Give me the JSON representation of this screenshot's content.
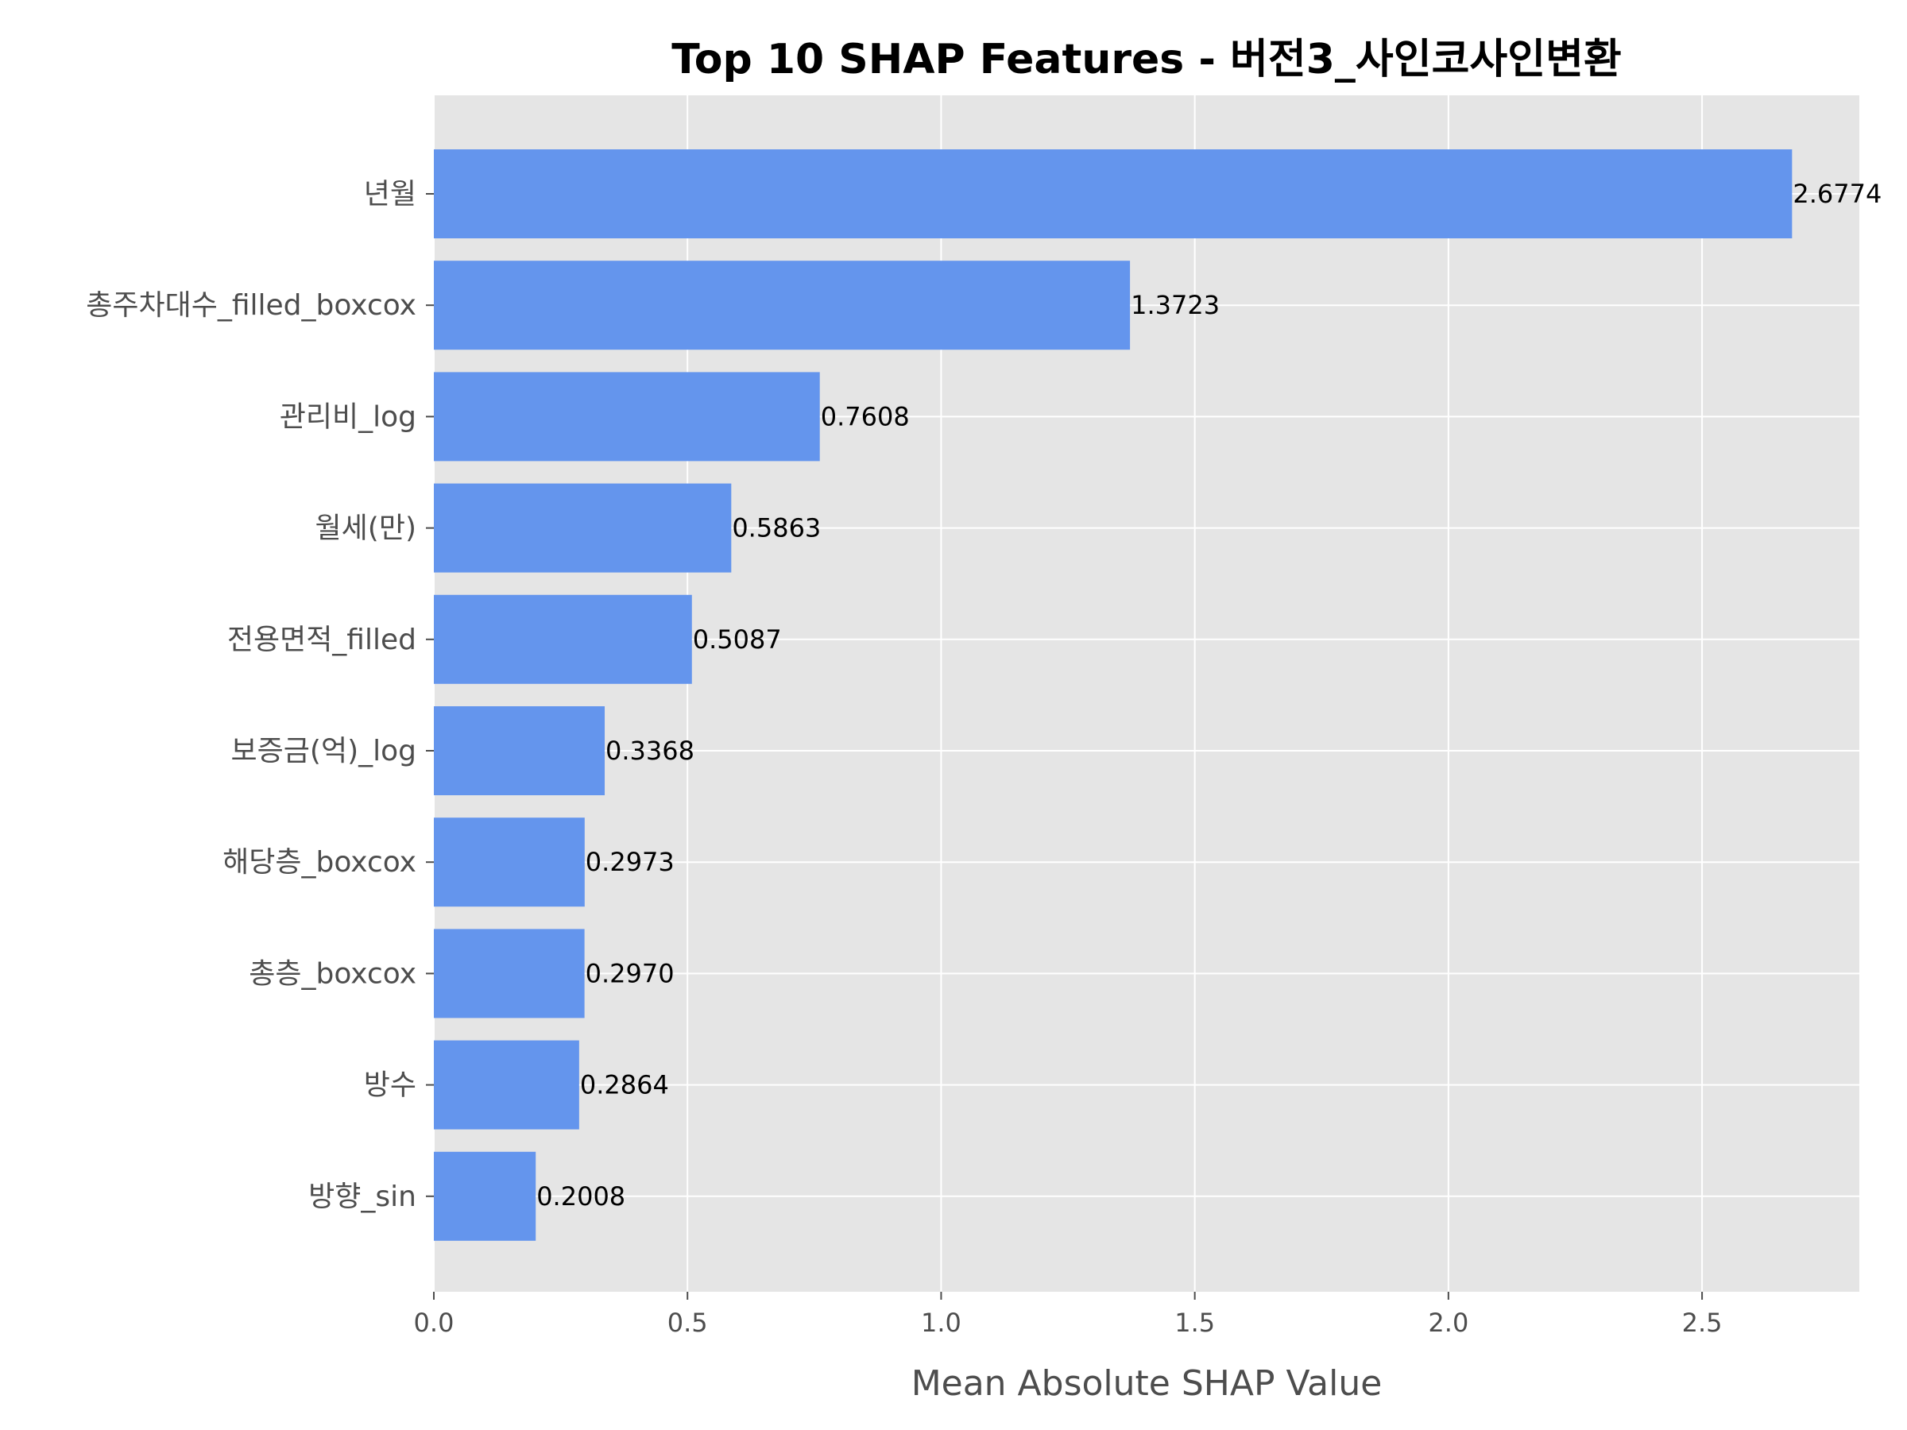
{
  "chart_data": {
    "type": "bar",
    "orientation": "horizontal",
    "title": "Top 10 SHAP Features - 버전3_사인코사인변환",
    "xlabel": "Mean Absolute SHAP Value",
    "ylabel": "",
    "xlim": [
      0,
      2.81
    ],
    "xticks": [
      0.0,
      0.5,
      1.0,
      1.5,
      2.0,
      2.5
    ],
    "xtick_labels": [
      "0.0",
      "0.5",
      "1.0",
      "1.5",
      "2.0",
      "2.5"
    ],
    "grid": true,
    "categories": [
      "년월",
      "총주차대수_filled_boxcox",
      "관리비_log",
      "월세(만)",
      "전용면적_filled",
      "보증금(억)_log",
      "해당층_boxcox",
      "총층_boxcox",
      "방수",
      "방향_sin"
    ],
    "values": [
      2.6774,
      1.3723,
      0.7608,
      0.5863,
      0.5087,
      0.3368,
      0.2973,
      0.297,
      0.2864,
      0.2008
    ],
    "value_labels": [
      "2.6774",
      "1.3723",
      "0.7608",
      "0.5863",
      "0.5087",
      "0.3368",
      "0.2973",
      "0.2970",
      "0.2864",
      "0.2008"
    ]
  },
  "colors": {
    "bar": "#6495ED",
    "plot_background": "#E5E5E5",
    "grid": "#FFFFFF",
    "tick_text": "#4D4D4D",
    "title_text": "#000000"
  }
}
